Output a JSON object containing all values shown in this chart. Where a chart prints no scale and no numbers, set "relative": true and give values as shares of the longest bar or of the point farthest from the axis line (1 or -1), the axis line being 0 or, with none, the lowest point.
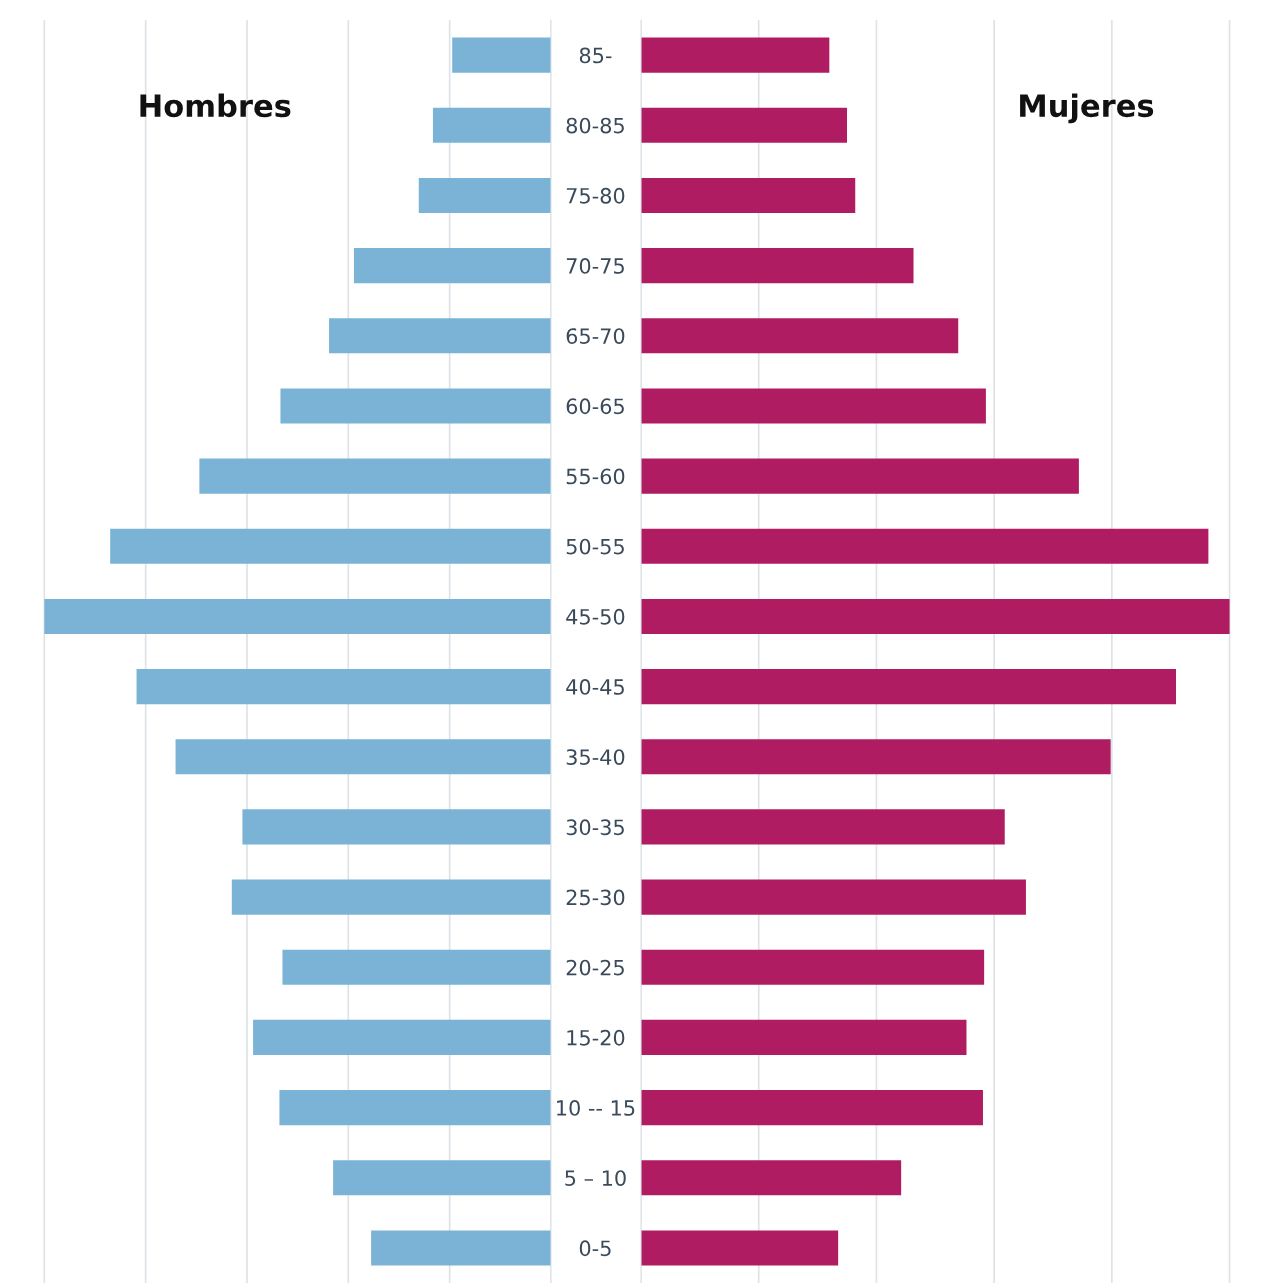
{
  "chart_data": [
    {
      "type": "bar",
      "orientation": "horizontal",
      "relative": true,
      "title": "Hombres",
      "grid": "x",
      "tick_labels": "y",
      "categories": [
        "85-",
        "80-85",
        "75-80",
        "70-75",
        "65-70",
        "60-65",
        "55-60",
        "50-55",
        "45-50",
        "40-45",
        "35-40",
        "30-35",
        "25-30",
        "20-25",
        "15-20",
        "10 -- 15",
        "5 – 10",
        "0-5"
      ],
      "series": [
        {
          "color": "#7ab3d6",
          "values": [
            0.195,
            0.233,
            0.261,
            0.389,
            0.438,
            0.534,
            0.694,
            0.87,
            1,
            0.818,
            0.741,
            0.609,
            0.63,
            0.53,
            0.588,
            0.536,
            0.43,
            0.355
          ]
        }
      ]
    },
    {
      "type": "bar",
      "orientation": "horizontal",
      "relative": true,
      "title": "Mujeres",
      "grid": "x",
      "tick_labels": false,
      "categories": [
        null,
        null,
        null,
        null,
        null,
        null,
        null,
        null,
        null,
        null,
        null,
        null,
        null,
        null,
        null,
        null,
        null,
        null
      ],
      "series": [
        {
          "color": "#b01c62",
          "values": [
            0.32,
            0.35,
            0.364,
            0.463,
            0.539,
            0.586,
            0.744,
            0.964,
            1,
            0.909,
            0.798,
            0.618,
            0.654,
            0.583,
            0.553,
            0.581,
            0.442,
            0.335
          ]
        }
      ]
    }
  ]
}
